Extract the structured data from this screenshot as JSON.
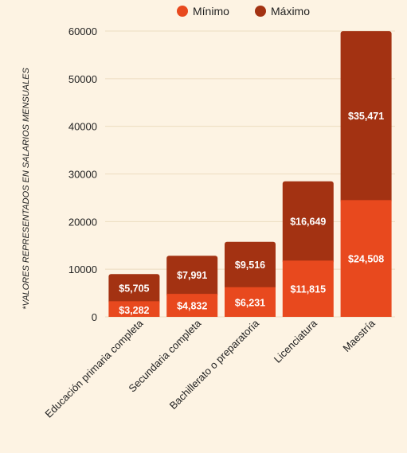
{
  "chart_data": {
    "type": "bar",
    "stacked": true,
    "categories": [
      "Educación primaria completa",
      "Secundaria completa",
      "Bachillerato o preparatoria",
      "Licenciatura",
      "Maestría"
    ],
    "series": [
      {
        "name": "Mínimo",
        "color": "#e8491e",
        "values": [
          3282,
          4832,
          6231,
          11815,
          24508
        ],
        "labels": [
          "$3,282",
          "$4,832",
          "$6,231",
          "$11,815",
          "$24,508"
        ]
      },
      {
        "name": "Máximo",
        "color": "#a33212",
        "values": [
          5705,
          7991,
          9516,
          16649,
          35471
        ],
        "labels": [
          "$5,705",
          "$7,991",
          "$9,516",
          "$16,649",
          "$35,471"
        ]
      }
    ],
    "ylabel": "*VALORES REPRESENTADOS EN SALARIOS MENSUALES",
    "ylim": [
      0,
      60000
    ],
    "yticks": [
      "0",
      "10000",
      "20000",
      "30000",
      "40000",
      "50000",
      "60000"
    ],
    "grid": true,
    "legend_position": "top-center"
  }
}
